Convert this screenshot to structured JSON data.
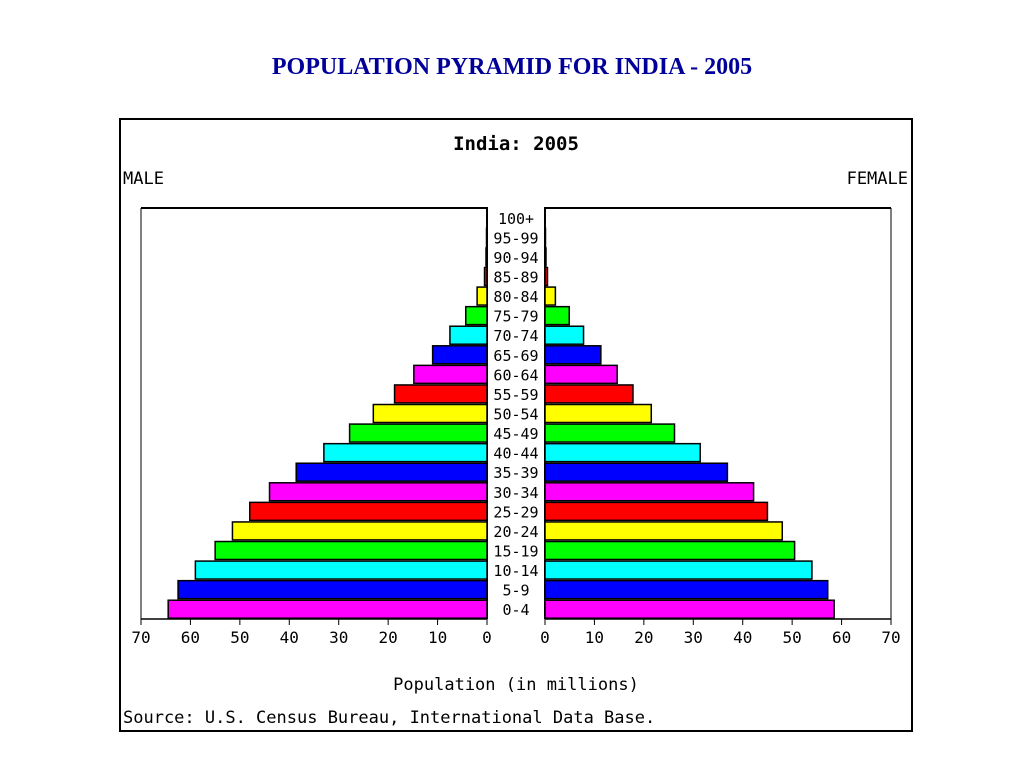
{
  "page": {
    "title": "POPULATION PYRAMID FOR INDIA - 2005"
  },
  "chart_data": {
    "type": "bar",
    "title": "India: 2005",
    "left_label": "MALE",
    "right_label": "FEMALE",
    "xlabel": "Population (in millions)",
    "source": "Source: U.S. Census Bureau, International Data Base.",
    "xlim": [
      0,
      70
    ],
    "x_ticks": [
      "70",
      "60",
      "50",
      "40",
      "30",
      "20",
      "10",
      "0",
      "0",
      "10",
      "20",
      "30",
      "40",
      "50",
      "60",
      "70"
    ],
    "categories": [
      "100+",
      "95-99",
      "90-94",
      "85-89",
      "80-84",
      "75-79",
      "70-74",
      "65-69",
      "60-64",
      "55-59",
      "50-54",
      "45-49",
      "40-44",
      "35-39",
      "30-34",
      "25-29",
      "20-24",
      "15-19",
      "10-14",
      "5-9",
      "0-4"
    ],
    "series": [
      {
        "name": "MALE",
        "values": [
          0.02,
          0.1,
          0.2,
          0.5,
          2.0,
          4.3,
          7.5,
          11.0,
          14.8,
          18.7,
          23.0,
          27.8,
          33.0,
          38.6,
          44.0,
          48.0,
          51.5,
          55.0,
          59.0,
          62.5,
          64.5
        ]
      },
      {
        "name": "FEMALE",
        "values": [
          0.02,
          0.1,
          0.2,
          0.5,
          2.1,
          4.9,
          7.8,
          11.3,
          14.6,
          17.8,
          21.5,
          26.2,
          31.4,
          36.9,
          42.2,
          45.0,
          48.0,
          50.5,
          54.0,
          57.2,
          58.5
        ]
      }
    ],
    "bar_colors": [
      "#ff00ff",
      "#0000ff",
      "#00ffff",
      "#00ff00",
      "#ffff00",
      "#ff0000"
    ]
  }
}
